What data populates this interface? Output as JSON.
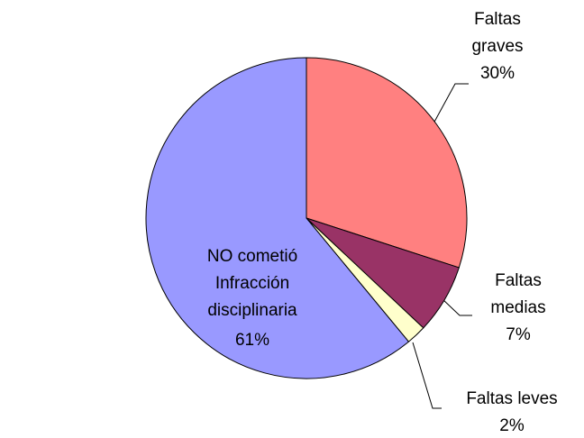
{
  "chart_data": {
    "type": "pie",
    "categories": [
      [
        "Faltas",
        "graves"
      ],
      [
        "Faltas",
        "medias"
      ],
      [
        "Faltas leves"
      ],
      [
        "NO cometió",
        "Infracción",
        "disciplinaria"
      ]
    ],
    "values": [
      30,
      7,
      2,
      61
    ],
    "value_labels": [
      "30%",
      "7%",
      "2%",
      "61%"
    ],
    "colors": [
      "#ff8080",
      "#993366",
      "#ffffcc",
      "#9999ff"
    ]
  }
}
